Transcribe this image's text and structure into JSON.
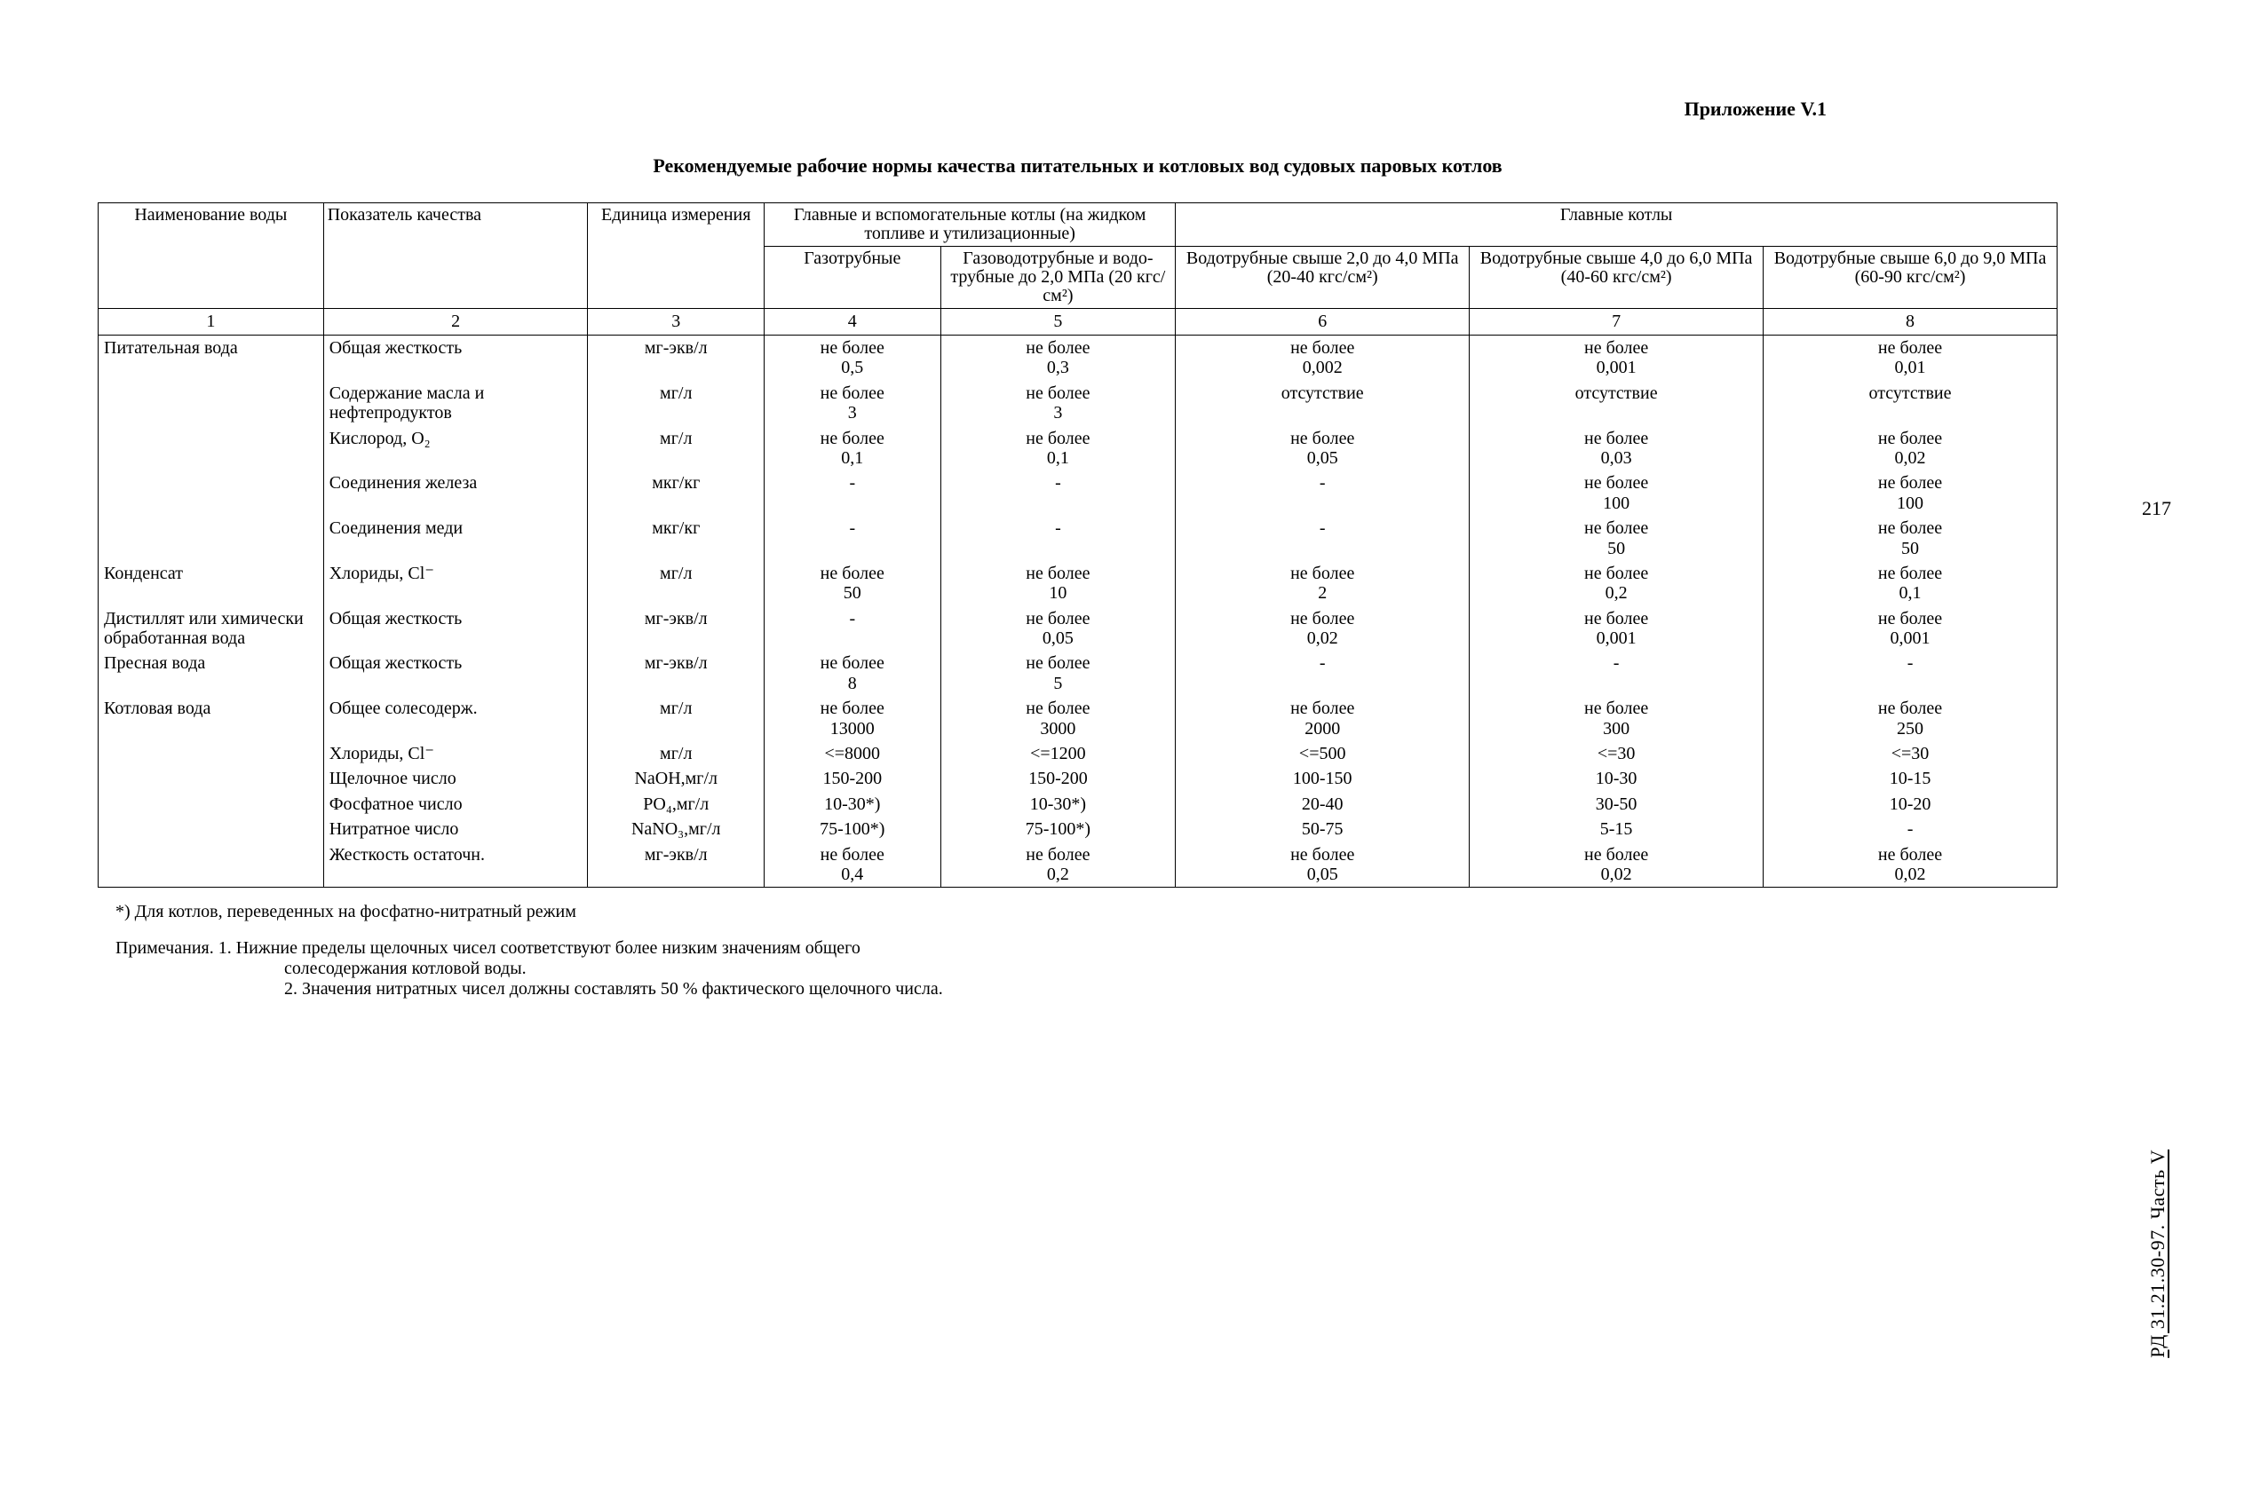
{
  "appendix_label": "Приложение V.1",
  "title": "Рекомендуемые рабочие нормы качества питательных и котловых вод судовых паровых котлов",
  "side_page_number": "217",
  "doc_id_side": "РД 31.21.30-97. Часть V",
  "headers": {
    "col1": "Наименование воды",
    "col2": "Показатель качества",
    "col3": "Единица измерения",
    "group45": "Главные и вспомогательные котлы (на жидком топливе и утилизационные)",
    "col4": "Газотрубные",
    "col5": "Газоводотруб­ные и водо­трубные до 2,0 МПа (20 кгс/см²)",
    "group678": "Главные котлы",
    "col6": "Водотрубные свыше 2,0 до 4,0 МПа (20-40 кгс/см²)",
    "col7": "Водотрубные свыше 4,0 до 6,0 МПа (40-60 кгс/см²)",
    "col8": "Водотрубные свыше 6,0 до 9,0 МПа (60-90 кгс/см²)"
  },
  "num_row": [
    "1",
    "2",
    "3",
    "4",
    "5",
    "6",
    "7",
    "8"
  ],
  "rows": [
    {
      "w": "Питательная вода",
      "p": "Общая жесткость",
      "u": "мг-экв/л",
      "c4": "не более 0,5",
      "c5": "не более 0,3",
      "c6": "не более 0,002",
      "c7": "не более 0,001",
      "c8": "не более 0,01"
    },
    {
      "w": "",
      "p": "Содержание масла и нефтепродуктов",
      "u": "мг/л",
      "c4": "не более 3",
      "c5": "не более 3",
      "c6": "отсутствие",
      "c7": "отсутствие",
      "c8": "отсутствие"
    },
    {
      "w": "",
      "p": "Кислород, O₂",
      "u": "мг/л",
      "c4": "не более 0,1",
      "c5": "не более 0,1",
      "c6": "не более 0,05",
      "c7": "не более 0,03",
      "c8": "не более 0,02"
    },
    {
      "w": "",
      "p": "Соединения железа",
      "u": "мкг/кг",
      "c4": "-",
      "c5": "-",
      "c6": "-",
      "c7": "не более 100",
      "c8": "не более 100"
    },
    {
      "w": "",
      "p": "Соединения меди",
      "u": "мкг/кг",
      "c4": "-",
      "c5": "-",
      "c6": "-",
      "c7": "не более 50",
      "c8": "не более 50"
    },
    {
      "w": "Конденсат",
      "p": "Хлориды, Cl⁻",
      "u": "мг/л",
      "c4": "не более 50",
      "c5": "не более 10",
      "c6": "не более 2",
      "c7": "не более 0,2",
      "c8": "не более 0,1"
    },
    {
      "w": "Дистиллят или химически об­работанная вода",
      "p": "Общая жесткость",
      "u": "мг-экв/л",
      "c4": "-",
      "c5": "не более 0,05",
      "c6": "не более 0,02",
      "c7": "не более 0,001",
      "c8": "не более 0,001"
    },
    {
      "w": "Пресная вода",
      "p": "Общая жесткость",
      "u": "мг-экв/л",
      "c4": "не более 8",
      "c5": "не более 5",
      "c6": "-",
      "c7": "-",
      "c8": "-"
    },
    {
      "w": "Котловая вода",
      "p": "Общее солесодерж.",
      "u": "мг/л",
      "c4": "не более 13000",
      "c5": "не более 3000",
      "c6": "не более 2000",
      "c7": "не более 300",
      "c8": "не более 250"
    },
    {
      "w": "",
      "p": "Хлориды, Cl⁻",
      "u": "мг/л",
      "c4": "<=8000",
      "c5": "<=1200",
      "c6": "<=500",
      "c7": "<=30",
      "c8": "<=30"
    },
    {
      "w": "",
      "p": "Щелочное число",
      "u": "NaOH,мг/л",
      "c4": "150-200",
      "c5": "150-200",
      "c6": "100-150",
      "c7": "10-30",
      "c8": "10-15"
    },
    {
      "w": "",
      "p": "Фосфатное число",
      "u": "PO₄,мг/л",
      "c4": "10-30*)",
      "c5": "10-30*)",
      "c6": "20-40",
      "c7": "30-50",
      "c8": "10-20"
    },
    {
      "w": "",
      "p": "Нитратное число",
      "u": "NaNO₃,мг/л",
      "c4": "75-100*)",
      "c5": "75-100*)",
      "c6": "50-75",
      "c7": "5-15",
      "c8": "-"
    },
    {
      "w": "",
      "p": "Жесткость остаточн.",
      "u": "мг-экв/л",
      "c4": "не более 0,4",
      "c5": "не более 0,2",
      "c6": "не более 0,05",
      "c7": "не более 0,02",
      "c8": "не более 0,02"
    }
  ],
  "footnote": "*) Для котлов, переведенных на фосфатно-нитратный режим",
  "notes_label": "Примечания.",
  "note1a": "1. Нижние пределы щелочных чисел соответствуют более низким значениям общего",
  "note1b": "солесодержания котловой воды.",
  "note2": "2. Значения нитратных чисел должны составлять 50 % фактического щелочного числа."
}
